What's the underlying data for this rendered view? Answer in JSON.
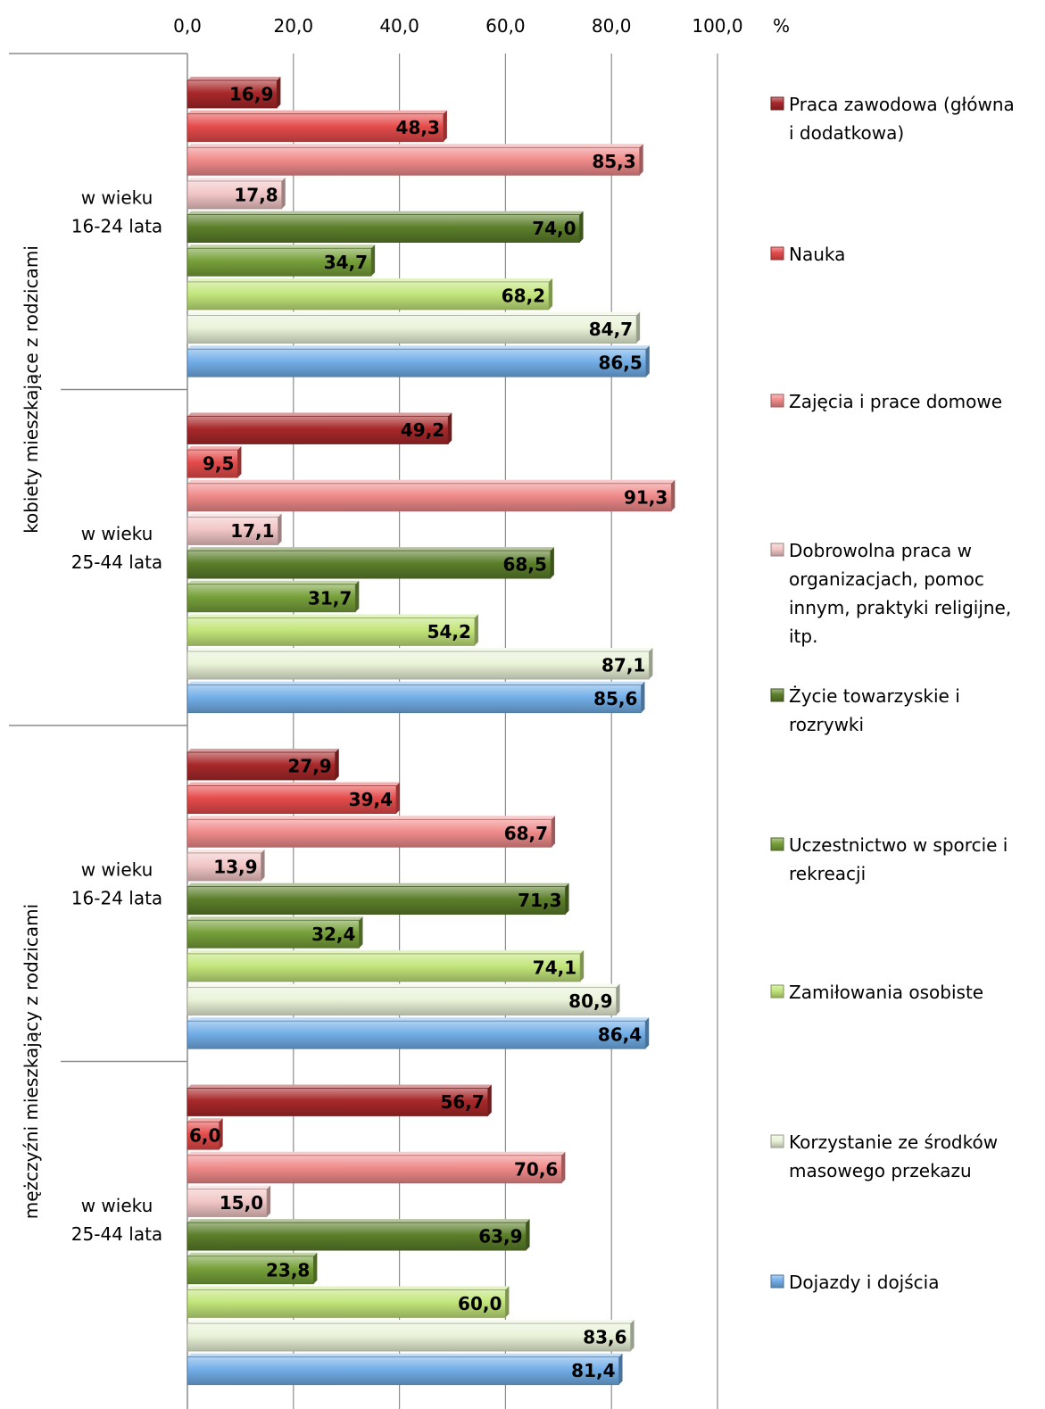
{
  "chart_data": {
    "type": "bar",
    "orientation": "horizontal",
    "unit_label": "%",
    "xlim": [
      0,
      100
    ],
    "x_ticks": [
      "0,0",
      "20,0",
      "40,0",
      "60,0",
      "80,0",
      "100,0"
    ],
    "grid": true,
    "legend_position": "right",
    "outer_groups": [
      {
        "label": "kobiety mieszkające z rodzicami",
        "subgroups": [
          0,
          1
        ]
      },
      {
        "label": "mężczyźni mieszkający z rodzicami",
        "subgroups": [
          2,
          3
        ]
      }
    ],
    "categories": [
      [
        "w wieku",
        "16-24 lata"
      ],
      [
        "w wieku",
        "25-44 lata"
      ],
      [
        "w wieku",
        "16-24 lata"
      ],
      [
        "w wieku",
        "25-44 lata"
      ]
    ],
    "series": [
      {
        "name": "Praca zawodowa (główna i dodatkowa)",
        "legend_lines": [
          "Praca zawodowa (główna",
          "i dodatkowa)"
        ],
        "color": "#a8282a",
        "values": [
          16.9,
          49.2,
          27.9,
          56.7
        ],
        "labels": [
          "16,9",
          "49,2",
          "27,9",
          "56,7"
        ]
      },
      {
        "name": "Nauka",
        "legend_lines": [
          "Nauka"
        ],
        "color": "#e54b4b",
        "values": [
          48.3,
          9.5,
          39.4,
          6.0
        ],
        "labels": [
          "48,3",
          "9,5",
          "39,4",
          "6,0"
        ]
      },
      {
        "name": "Zajęcia i prace domowe",
        "legend_lines": [
          "Zajęcia i prace domowe"
        ],
        "color": "#f08a8a",
        "values": [
          85.3,
          91.3,
          68.7,
          70.6
        ],
        "labels": [
          "85,3",
          "91,3",
          "68,7",
          "70,6"
        ]
      },
      {
        "name": "Dobrowolna praca w organizacjach, pomoc innym, praktyki religijne, itp.",
        "legend_lines": [
          "Dobrowolna praca w",
          "organizacjach, pomoc",
          "innym, praktyki religijne,",
          "itp."
        ],
        "color": "#f2c6c6",
        "values": [
          17.8,
          17.1,
          13.9,
          15.0
        ],
        "labels": [
          "17,8",
          "17,1",
          "13,9",
          "15,0"
        ]
      },
      {
        "name": "Życie towarzyskie i rozrywki",
        "legend_lines": [
          "Życie towarzyskie i",
          "rozrywki"
        ],
        "color": "#5c7f2a",
        "values": [
          74.0,
          68.5,
          71.3,
          63.9
        ],
        "labels": [
          "74,0",
          "68,5",
          "71,3",
          "63,9"
        ]
      },
      {
        "name": "Uczestnictwo w sporcie i rekreacji",
        "legend_lines": [
          "Uczestnictwo w sporcie i",
          "rekreacji"
        ],
        "color": "#77a03a",
        "values": [
          34.7,
          31.7,
          32.4,
          23.8
        ],
        "labels": [
          "34,7",
          "31,7",
          "32,4",
          "23,8"
        ]
      },
      {
        "name": "Zamiłowania osobiste",
        "legend_lines": [
          "Zamiłowania osobiste"
        ],
        "color": "#c2e57a",
        "values": [
          68.2,
          54.2,
          74.1,
          60.0
        ],
        "labels": [
          "68,2",
          "54,2",
          "74,1",
          "60,0"
        ]
      },
      {
        "name": "Korzystanie ze środków masowego przekazu",
        "legend_lines": [
          "Korzystanie ze środków",
          "masowego przekazu"
        ],
        "color": "#eaf3d8",
        "values": [
          84.7,
          87.1,
          80.9,
          83.6
        ],
        "labels": [
          "84,7",
          "87,1",
          "80,9",
          "83,6"
        ]
      },
      {
        "name": "Dojazdy i dojścia",
        "legend_lines": [
          "Dojazdy i dojścia"
        ],
        "color": "#72aee8",
        "values": [
          86.5,
          85.6,
          86.4,
          81.4
        ],
        "labels": [
          "86,5",
          "85,6",
          "86,4",
          "81,4"
        ]
      }
    ]
  }
}
